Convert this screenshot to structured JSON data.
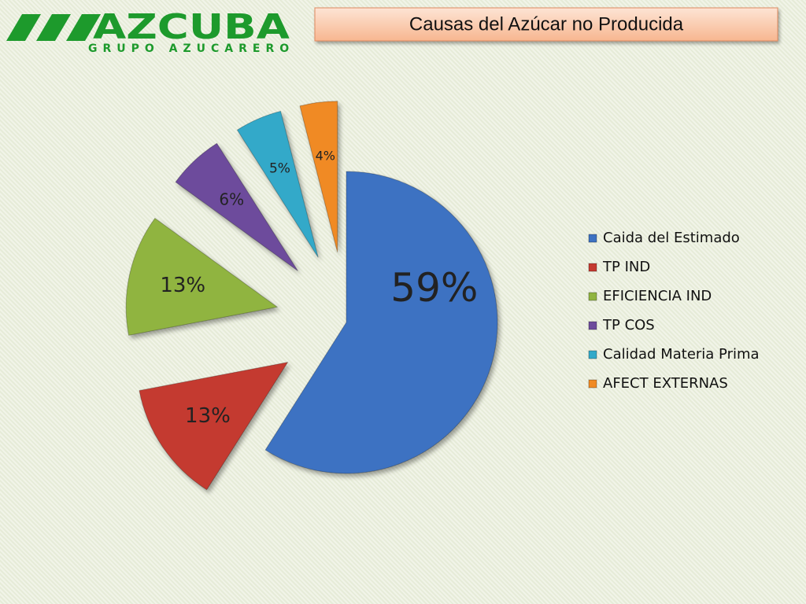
{
  "logo": {
    "name": "AZCUBA",
    "tagline": "GRUPO AZUCARERO"
  },
  "chart_data": {
    "type": "pie",
    "title": "Causas del Azúcar no Producida",
    "categories": [
      "Caida del Estimado",
      "TP IND",
      "EFICIENCIA IND",
      "TP COS",
      "Calidad Materia Prima",
      "AFECT EXTERNAS"
    ],
    "values": [
      59,
      13,
      13,
      6,
      5,
      4
    ],
    "value_labels": [
      "59%",
      "13%",
      "13%",
      "6%",
      "5%",
      "4%"
    ],
    "colors": [
      "#3d72c2",
      "#c43a30",
      "#90b440",
      "#6d4b9c",
      "#33a9c9",
      "#f08a24"
    ],
    "legend": "right"
  }
}
